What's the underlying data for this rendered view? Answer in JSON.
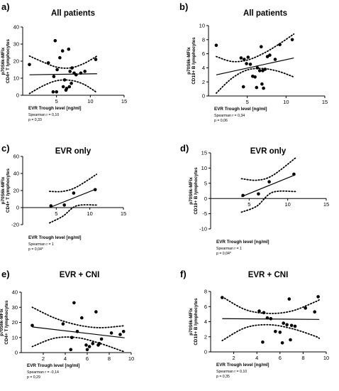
{
  "chart_data": [
    {
      "type": "scatter",
      "panel_label": "a)",
      "title": "All patients",
      "xlabel": "EVR Trough level [ng/ml]",
      "ylabel_lines": [
        "p70S6k-MFIx",
        "CD4+ T lymphocytes"
      ],
      "xlim": [
        0,
        15
      ],
      "ylim": [
        0,
        40
      ],
      "xticks": [
        5,
        10,
        15
      ],
      "yticks": [
        0,
        10,
        20,
        30,
        40
      ],
      "points": [
        [
          1,
          18
        ],
        [
          3.8,
          19
        ],
        [
          4.6,
          11
        ],
        [
          4.8,
          32
        ],
        [
          5.1,
          15
        ],
        [
          5.5,
          22
        ],
        [
          5.9,
          26
        ],
        [
          6.2,
          9
        ],
        [
          6.5,
          4
        ],
        [
          6.8,
          27
        ],
        [
          7.0,
          14
        ],
        [
          7.3,
          16
        ],
        [
          7.6,
          13
        ],
        [
          7.9,
          12
        ],
        [
          8.6,
          13
        ],
        [
          9.2,
          14
        ],
        [
          10.8,
          21
        ],
        [
          4.5,
          2
        ],
        [
          5.0,
          2
        ],
        [
          6.0,
          5
        ],
        [
          6.4,
          3
        ],
        [
          6.9,
          5
        ],
        [
          7.2,
          7
        ]
      ],
      "fit": [
        [
          1,
          12.0
        ],
        [
          11,
          12.6
        ]
      ],
      "ci_upper": [
        [
          1,
          23
        ],
        [
          3,
          19.5
        ],
        [
          5,
          16.5
        ],
        [
          7,
          16
        ],
        [
          9,
          18.5
        ],
        [
          11,
          23
        ]
      ],
      "ci_lower": [
        [
          1,
          1
        ],
        [
          3,
          5.5
        ],
        [
          5,
          8.5
        ],
        [
          7,
          8.8
        ],
        [
          9,
          6.5
        ],
        [
          11,
          1.5
        ]
      ],
      "stats": [
        "Spearman r = 0,10",
        "p = 0,33"
      ]
    },
    {
      "type": "scatter",
      "panel_label": "b)",
      "title": "All patients",
      "xlabel": "EVR Trough level [ng/ml]",
      "ylabel_lines": [
        "p70S6k-MFIx",
        "CD19+ B lymphocytes"
      ],
      "xlim": [
        0,
        15
      ],
      "ylim": [
        0,
        10
      ],
      "xticks": [
        5,
        10,
        15
      ],
      "yticks": [
        0,
        2,
        4,
        6,
        8,
        10
      ],
      "points": [
        [
          1,
          7.2
        ],
        [
          4.2,
          5.4
        ],
        [
          4.6,
          5.2
        ],
        [
          4.9,
          4.6
        ],
        [
          5.1,
          5.5
        ],
        [
          5.4,
          4.5
        ],
        [
          5.7,
          2.8
        ],
        [
          6.0,
          2.7
        ],
        [
          6.3,
          4.0
        ],
        [
          6.6,
          3.6
        ],
        [
          6.8,
          7.0
        ],
        [
          7.0,
          3.6
        ],
        [
          7.3,
          3.8
        ],
        [
          7.6,
          5.6
        ],
        [
          7.9,
          5.8
        ],
        [
          8.6,
          5.2
        ],
        [
          9.2,
          7.3
        ],
        [
          10.8,
          8.0
        ],
        [
          4.5,
          1.3
        ],
        [
          6.2,
          1.2
        ],
        [
          6.9,
          1.7
        ],
        [
          7.1,
          1.1
        ]
      ],
      "fit": [
        [
          1,
          3.0
        ],
        [
          11,
          5.4
        ]
      ],
      "ci_upper": [
        [
          1,
          5.6
        ],
        [
          3,
          4.9
        ],
        [
          5,
          5.1
        ],
        [
          7,
          6.0
        ],
        [
          9,
          7.3
        ],
        [
          11,
          8.8
        ]
      ],
      "ci_lower": [
        [
          1,
          0.4
        ],
        [
          3,
          2.5
        ],
        [
          5,
          3.7
        ],
        [
          7,
          3.9
        ],
        [
          9,
          3.5
        ],
        [
          11,
          2.7
        ]
      ],
      "stats": [
        "Spearman r = 0,34",
        "p = 0,06"
      ]
    },
    {
      "type": "scatter",
      "panel_label": "c)",
      "title": "EVR only",
      "xlabel": "EVR Trough level [ng/ml]",
      "ylabel_lines": [
        "p70S6k-MFIx",
        "CD4+ T lymphocytes"
      ],
      "xlim": [
        0,
        15
      ],
      "ylim": [
        -20,
        60
      ],
      "xticks": [
        5,
        10,
        15
      ],
      "yticks": [
        -20,
        0,
        20,
        40,
        60
      ],
      "points": [
        [
          4.2,
          2
        ],
        [
          6.2,
          3
        ],
        [
          7.6,
          17
        ],
        [
          10.8,
          21
        ]
      ],
      "fit": [
        [
          4,
          0
        ],
        [
          11,
          22
        ]
      ],
      "ci_upper": [
        [
          4,
          19
        ],
        [
          6,
          19
        ],
        [
          8,
          24
        ],
        [
          11,
          39
        ]
      ],
      "ci_lower": [
        [
          4,
          -18
        ],
        [
          6,
          -10
        ],
        [
          8,
          2
        ],
        [
          11,
          3
        ]
      ],
      "stats": [
        "Spearman r = 1",
        "p = 0,04*"
      ]
    },
    {
      "type": "scatter",
      "panel_label": "d)",
      "title": "EVR only",
      "xlabel": "EVR Trough level [ng/ml]",
      "ylabel_lines": [
        "p70S6k-MFIx",
        "CD19+ B lymphocytes"
      ],
      "xlim": [
        0,
        15
      ],
      "ylim": [
        -10,
        15
      ],
      "xticks": [
        5,
        10,
        15
      ],
      "yticks": [
        -10,
        -5,
        0,
        5,
        10,
        15
      ],
      "points": [
        [
          4.2,
          1.0
        ],
        [
          6.2,
          1.5
        ],
        [
          7.6,
          5.5
        ],
        [
          10.8,
          8.0
        ]
      ],
      "fit": [
        [
          4,
          0.6
        ],
        [
          11,
          7.8
        ]
      ],
      "ci_upper": [
        [
          4,
          6.5
        ],
        [
          6,
          6.0
        ],
        [
          8,
          7.5
        ],
        [
          11,
          13.3
        ]
      ],
      "ci_lower": [
        [
          4,
          -4.5
        ],
        [
          6,
          -2.5
        ],
        [
          8,
          2.0
        ],
        [
          11,
          2.3
        ]
      ],
      "stats": [
        "Spearman r = 1",
        "p = 0,04*"
      ]
    },
    {
      "type": "scatter",
      "panel_label": "e)",
      "title": "EVR + CNI",
      "xlabel": "EVR Trough level [ng/ml]",
      "ylabel_lines": [
        "p70S6k-MFIx",
        "CD4+ T lymphocytes"
      ],
      "xlim": [
        0,
        10
      ],
      "ylim": [
        0,
        40
      ],
      "xticks": [
        2,
        4,
        6,
        8,
        10
      ],
      "yticks": [
        0,
        10,
        20,
        30,
        40
      ],
      "points": [
        [
          1,
          18
        ],
        [
          3.8,
          19
        ],
        [
          4.6,
          10
        ],
        [
          4.8,
          33
        ],
        [
          5.1,
          14
        ],
        [
          5.5,
          23
        ],
        [
          5.9,
          5
        ],
        [
          6.2,
          4
        ],
        [
          6.5,
          6
        ],
        [
          6.8,
          27
        ],
        [
          7.0,
          5
        ],
        [
          7.3,
          9
        ],
        [
          8.2,
          13
        ],
        [
          9.0,
          12
        ],
        [
          9.3,
          14
        ],
        [
          4.5,
          2
        ],
        [
          6.0,
          2
        ],
        [
          7.1,
          6
        ]
      ],
      "fit": [
        [
          1,
          17
        ],
        [
          9.4,
          9.8
        ]
      ],
      "ci_upper": [
        [
          1,
          30
        ],
        [
          3,
          23
        ],
        [
          5,
          18.5
        ],
        [
          7,
          16.5
        ],
        [
          9,
          17.5
        ],
        [
          9.4,
          18
        ]
      ],
      "ci_lower": [
        [
          1,
          4
        ],
        [
          3,
          9.5
        ],
        [
          5,
          10
        ],
        [
          7,
          6.5
        ],
        [
          9,
          1.5
        ],
        [
          9.4,
          0.5
        ]
      ],
      "stats": [
        "Spearman r = -0,14",
        "p = 0,29"
      ]
    },
    {
      "type": "scatter",
      "panel_label": "f)",
      "title": "EVR + CNI",
      "xlabel": "EVR Trough level [ng/ml]",
      "ylabel_lines": [
        "p70S6k-MFIx",
        "CD19+ B lymphocytes"
      ],
      "xlim": [
        0,
        10
      ],
      "ylim": [
        0,
        8
      ],
      "xticks": [
        2,
        4,
        6,
        8,
        10
      ],
      "yticks": [
        0,
        2,
        4,
        6,
        8
      ],
      "points": [
        [
          1,
          7.2
        ],
        [
          4.2,
          5.4
        ],
        [
          4.6,
          5.2
        ],
        [
          4.9,
          4.5
        ],
        [
          5.2,
          4.4
        ],
        [
          5.6,
          2.7
        ],
        [
          6.0,
          2.6
        ],
        [
          6.3,
          3.8
        ],
        [
          6.6,
          3.6
        ],
        [
          6.8,
          7.0
        ],
        [
          7.0,
          3.5
        ],
        [
          7.3,
          3.4
        ],
        [
          8.2,
          5.8
        ],
        [
          9.0,
          5.3
        ],
        [
          9.3,
          7.3
        ],
        [
          4.5,
          1.3
        ],
        [
          6.2,
          1.2
        ],
        [
          6.9,
          1.6
        ]
      ],
      "fit": [
        [
          1,
          4.4
        ],
        [
          9.4,
          4.3
        ]
      ],
      "ci_upper": [
        [
          1,
          7.3
        ],
        [
          3,
          5.6
        ],
        [
          5,
          5.1
        ],
        [
          7,
          5.4
        ],
        [
          9,
          6.6
        ],
        [
          9.4,
          6.9
        ]
      ],
      "ci_lower": [
        [
          1,
          1.5
        ],
        [
          3,
          3.2
        ],
        [
          5,
          3.6
        ],
        [
          7,
          3.1
        ],
        [
          9,
          2.1
        ],
        [
          9.4,
          1.8
        ]
      ],
      "stats": [
        "Spearman r = 0,10",
        "p = 0,35"
      ]
    }
  ]
}
